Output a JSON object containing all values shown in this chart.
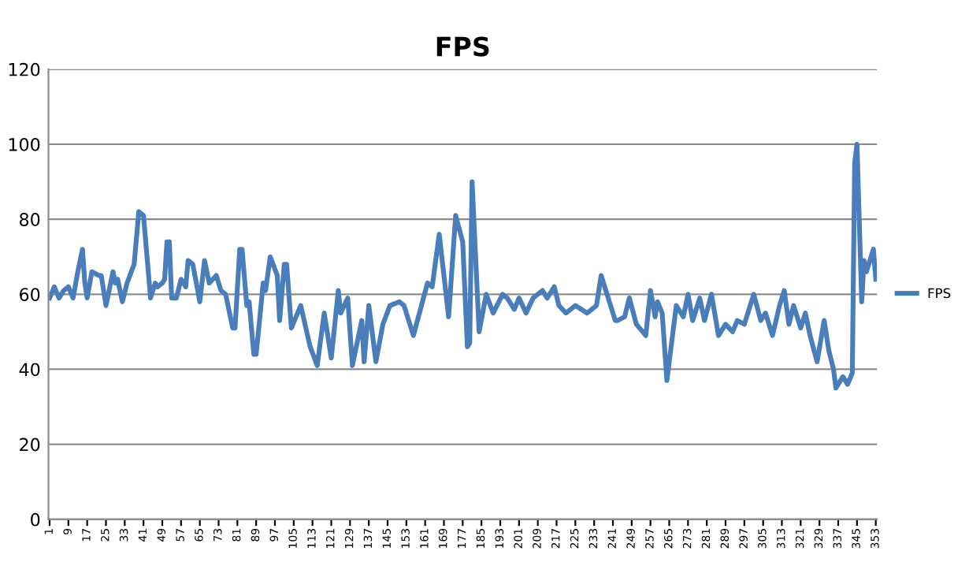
{
  "chart_data": {
    "type": "line",
    "title": "FPS",
    "x": [
      1,
      3,
      5,
      7,
      9,
      11,
      13,
      15,
      16,
      17,
      19,
      22,
      23,
      25,
      28,
      29,
      30,
      32,
      34,
      37,
      39,
      41,
      44,
      46,
      47,
      49,
      50,
      51,
      52,
      53,
      55,
      57,
      59,
      60,
      62,
      65,
      67,
      69,
      72,
      74,
      76,
      79,
      80,
      82,
      83,
      85,
      86,
      88,
      89,
      92,
      93,
      95,
      98,
      99,
      101,
      102,
      104,
      108,
      112,
      115,
      118,
      121,
      124,
      125,
      128,
      130,
      134,
      135,
      137,
      140,
      143,
      146,
      150,
      152,
      156,
      159,
      162,
      164,
      167,
      171,
      174,
      177,
      179,
      180,
      181,
      184,
      187,
      190,
      194,
      196,
      199,
      201,
      204,
      207,
      211,
      213,
      216,
      218,
      221,
      225,
      230,
      234,
      236,
      239,
      242,
      243,
      246,
      248,
      251,
      255,
      257,
      259,
      260,
      262,
      264,
      268,
      271,
      273,
      275,
      278,
      280,
      283,
      286,
      289,
      292,
      294,
      297,
      301,
      304,
      306,
      309,
      312,
      314,
      316,
      318,
      321,
      323,
      325,
      328,
      331,
      333,
      335,
      336,
      339,
      341,
      343,
      344,
      345,
      347,
      348,
      349,
      351,
      352,
      353
    ],
    "series": [
      {
        "name": "FPS",
        "color": "#4a7ebb",
        "values": [
          59,
          62,
          59,
          61,
          62,
          59,
          66,
          72,
          63,
          59,
          66,
          65,
          65,
          57,
          66,
          63,
          64,
          58,
          63,
          68,
          82,
          81,
          59,
          63,
          62,
          63,
          64,
          74,
          74,
          59,
          59,
          64,
          62,
          69,
          68,
          58,
          69,
          63,
          65,
          61,
          60,
          51,
          51,
          72,
          72,
          57,
          58,
          44,
          44,
          63,
          61,
          70,
          65,
          53,
          68,
          68,
          51,
          57,
          46,
          41,
          55,
          43,
          61,
          55,
          59,
          41,
          53,
          42,
          57,
          42,
          52,
          57,
          58,
          57,
          49,
          56,
          63,
          62,
          76,
          54,
          81,
          74,
          46,
          47,
          90,
          50,
          60,
          55,
          60,
          59,
          56,
          59,
          55,
          59,
          61,
          59,
          62,
          57,
          55,
          57,
          55,
          57,
          65,
          59,
          53,
          53,
          54,
          59,
          52,
          49,
          61,
          54,
          58,
          55,
          37,
          57,
          54,
          60,
          53,
          59,
          53,
          60,
          49,
          52,
          50,
          53,
          52,
          60,
          53,
          55,
          49,
          57,
          61,
          52,
          57,
          51,
          55,
          49,
          42,
          53,
          45,
          40,
          35,
          38,
          36,
          39,
          95,
          100,
          58,
          69,
          66,
          70,
          72,
          64
        ]
      }
    ],
    "ylim": [
      0,
      120
    ],
    "yticks": [
      0,
      20,
      40,
      60,
      80,
      100,
      120
    ],
    "xlim": [
      0.5,
      353.5
    ],
    "xticks": [
      1,
      9,
      17,
      25,
      33,
      41,
      49,
      57,
      65,
      73,
      81,
      89,
      97,
      105,
      113,
      121,
      129,
      137,
      145,
      153,
      161,
      169,
      177,
      185,
      193,
      201,
      209,
      217,
      225,
      233,
      241,
      249,
      257,
      265,
      273,
      281,
      289,
      297,
      305,
      313,
      321,
      329,
      337,
      345,
      353
    ],
    "grid": "y",
    "legend": "right",
    "marker": "none",
    "line_style": "solid"
  }
}
